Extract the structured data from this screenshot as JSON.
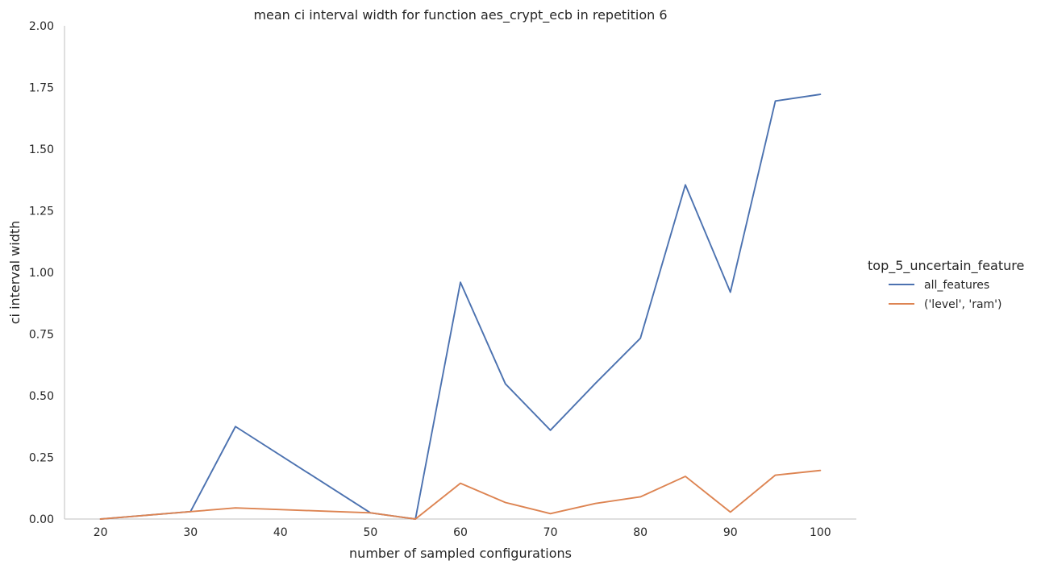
{
  "chart_data": {
    "type": "line",
    "title": "mean ci interval width for function aes_crypt_ecb in repetition 6",
    "xlabel": "number of sampled configurations",
    "ylabel": "ci interval width",
    "xlim": [
      16,
      104
    ],
    "ylim": [
      0,
      2.0
    ],
    "xticks": [
      20,
      30,
      40,
      50,
      60,
      70,
      80,
      90,
      100
    ],
    "yticks": [
      0.0,
      0.25,
      0.5,
      0.75,
      1.0,
      1.25,
      1.5,
      1.75,
      2.0
    ],
    "ytick_labels": [
      "0.00",
      "0.25",
      "0.50",
      "0.75",
      "1.00",
      "1.25",
      "1.50",
      "1.75",
      "2.00"
    ],
    "grid": false,
    "legend": {
      "title": "top_5_uncertain_feature",
      "placement": "right"
    },
    "x": [
      20,
      30,
      35,
      50,
      55,
      60,
      65,
      70,
      75,
      80,
      85,
      90,
      95,
      100
    ],
    "series": [
      {
        "name": "all_features",
        "color": "#4c72b0",
        "values": [
          0.0,
          0.03,
          0.375,
          0.025,
          0.0,
          0.96,
          0.548,
          0.36,
          0.55,
          0.733,
          1.355,
          0.92,
          1.695,
          1.722
        ]
      },
      {
        "name": "('level', 'ram')",
        "color": "#dd8452",
        "values": [
          0.0,
          0.03,
          0.045,
          0.025,
          0.0,
          0.145,
          0.067,
          0.022,
          0.063,
          0.09,
          0.173,
          0.028,
          0.178,
          0.197
        ]
      }
    ]
  }
}
